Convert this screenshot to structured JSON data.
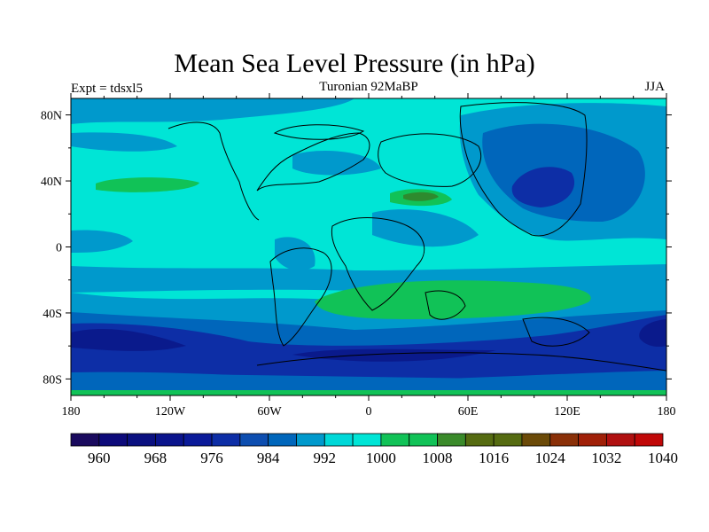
{
  "title": "Mean Sea Level Pressure (in hPa)",
  "left_label": "Expt = tdsxl5",
  "center_label": "Turonian  92MaBP",
  "right_label": "JJA",
  "map": {
    "lon_range": [
      -180,
      180
    ],
    "lat_range": [
      -90,
      90
    ],
    "lat_ticks": [
      {
        "value": 80,
        "label": "80N"
      },
      {
        "value": 40,
        "label": "40N"
      },
      {
        "value": 0,
        "label": "0"
      },
      {
        "value": -40,
        "label": "40S"
      },
      {
        "value": -80,
        "label": "80S"
      }
    ],
    "lon_ticks": [
      {
        "value": -180,
        "label": "180"
      },
      {
        "value": -120,
        "label": "120W"
      },
      {
        "value": -60,
        "label": "60W"
      },
      {
        "value": 0,
        "label": "0"
      },
      {
        "value": 60,
        "label": "60E"
      },
      {
        "value": 120,
        "label": "120E"
      },
      {
        "value": 180,
        "label": "180"
      }
    ],
    "colors": {
      "c988": "#0066bb",
      "c992": "#0099cc",
      "c996": "#00e5d6",
      "c1004": "#11c257",
      "c1012": "#2e8a2e",
      "c976": "#0d2ea6",
      "c968": "#0a1a8c"
    }
  },
  "colorbar": {
    "colors": [
      "#1a0a5e",
      "#0d0a7a",
      "#0a1080",
      "#0a148c",
      "#0a1a99",
      "#0d2ea6",
      "#0d4eb0",
      "#0066bb",
      "#0099cc",
      "#00d8d8",
      "#00e5d6",
      "#11c257",
      "#11c257",
      "#3a8a2a",
      "#556b11",
      "#556b11",
      "#6b4a08",
      "#8a3008",
      "#a02008",
      "#b01010",
      "#c00808"
    ],
    "labels": [
      {
        "value": 960,
        "label": "960"
      },
      {
        "value": 968,
        "label": "968"
      },
      {
        "value": 976,
        "label": "976"
      },
      {
        "value": 984,
        "label": "984"
      },
      {
        "value": 992,
        "label": "992"
      },
      {
        "value": 1000,
        "label": "1000"
      },
      {
        "value": 1008,
        "label": "1008"
      },
      {
        "value": 1016,
        "label": "1016"
      },
      {
        "value": 1024,
        "label": "1024"
      },
      {
        "value": 1032,
        "label": "1032"
      },
      {
        "value": 1040,
        "label": "1040"
      }
    ],
    "min": 956,
    "step": 4
  }
}
